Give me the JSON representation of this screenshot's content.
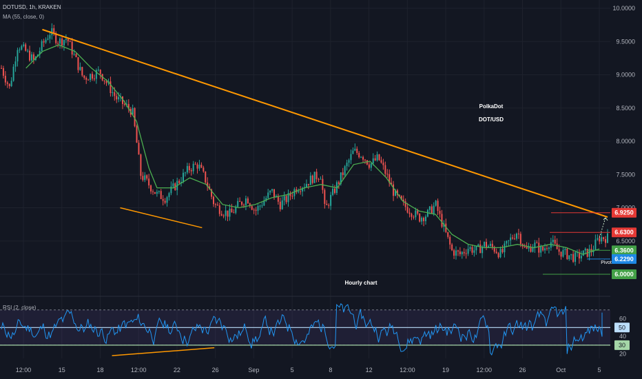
{
  "header": {
    "symbol_line": "DOTUSD, 1h, KRAKEN",
    "ma_line": "MA (55, close, 0)",
    "rsi_line": "RSI (2, close)"
  },
  "annotations": {
    "title1": "PolkaDot",
    "title2": "DOT/USD",
    "chart_note": "Hourly chart",
    "pivot": "Pivot"
  },
  "colors": {
    "background": "#131722",
    "candle_up": "#26a69a",
    "candle_down": "#ef5350",
    "ma": "#4caf50",
    "trendline": "#ff9800",
    "rsi": "#2196f3",
    "red_level": "#e53935",
    "green_level": "#43a047",
    "blue_level": "#1e88e5"
  },
  "chart_data": [
    {
      "type": "candlestick",
      "name": "price",
      "symbol": "DOTUSD",
      "interval": "1h",
      "exchange": "KRAKEN",
      "ylim": [
        5.6,
        10.0
      ],
      "ytick_labels": [
        "10.0000",
        "9.5000",
        "9.0000",
        "8.5000",
        "8.0000",
        "7.5000",
        "7.0000",
        "6.5000",
        "6.0000"
      ],
      "yticks": [
        10.0,
        9.5,
        9.0,
        8.5,
        8.0,
        7.5,
        7.0,
        6.5,
        6.0
      ],
      "x_tick_labels": [
        "12:00",
        "15",
        "18",
        "12:00",
        "22",
        "26",
        "Sep",
        "5",
        "8",
        "12",
        "12:00",
        "19",
        "12:00",
        "26",
        "Oct",
        "5"
      ],
      "close_path": [
        [
          0,
          9.1
        ],
        [
          2,
          8.8
        ],
        [
          4,
          9.45
        ],
        [
          6,
          9.35
        ],
        [
          8,
          9.2
        ],
        [
          10,
          9.45
        ],
        [
          12,
          9.65
        ],
        [
          14,
          9.5
        ],
        [
          16,
          9.55
        ],
        [
          18,
          9.25
        ],
        [
          20,
          8.95
        ],
        [
          22,
          9.0
        ],
        [
          24,
          9.05
        ],
        [
          26,
          8.85
        ],
        [
          28,
          8.65
        ],
        [
          30,
          8.55
        ],
        [
          32,
          8.45
        ],
        [
          33,
          8.0
        ],
        [
          34,
          7.5
        ],
        [
          36,
          7.35
        ],
        [
          38,
          7.2
        ],
        [
          40,
          7.15
        ],
        [
          42,
          7.3
        ],
        [
          44,
          7.45
        ],
        [
          46,
          7.6
        ],
        [
          48,
          7.65
        ],
        [
          50,
          7.4
        ],
        [
          52,
          7.05
        ],
        [
          54,
          6.95
        ],
        [
          56,
          6.9
        ],
        [
          58,
          7.05
        ],
        [
          60,
          7.15
        ],
        [
          62,
          6.95
        ],
        [
          64,
          7.1
        ],
        [
          66,
          7.25
        ],
        [
          68,
          7.05
        ],
        [
          70,
          7.15
        ],
        [
          72,
          7.3
        ],
        [
          74,
          7.35
        ],
        [
          76,
          7.45
        ],
        [
          78,
          7.5
        ],
        [
          79,
          6.95
        ],
        [
          80,
          7.1
        ],
        [
          82,
          7.35
        ],
        [
          84,
          7.6
        ],
        [
          86,
          7.85
        ],
        [
          88,
          7.8
        ],
        [
          90,
          7.65
        ],
        [
          92,
          7.75
        ],
        [
          94,
          7.5
        ],
        [
          96,
          7.2
        ],
        [
          98,
          7.05
        ],
        [
          100,
          6.95
        ],
        [
          102,
          6.85
        ],
        [
          104,
          6.9
        ],
        [
          106,
          7.05
        ],
        [
          108,
          6.7
        ],
        [
          110,
          6.35
        ],
        [
          112,
          6.3
        ],
        [
          114,
          6.4
        ],
        [
          116,
          6.35
        ],
        [
          118,
          6.45
        ],
        [
          120,
          6.4
        ],
        [
          122,
          6.3
        ],
        [
          124,
          6.5
        ],
        [
          126,
          6.65
        ],
        [
          128,
          6.35
        ],
        [
          130,
          6.45
        ],
        [
          132,
          6.35
        ],
        [
          134,
          6.5
        ],
        [
          136,
          6.35
        ],
        [
          138,
          6.3
        ],
        [
          140,
          6.25
        ],
        [
          142,
          6.3
        ],
        [
          144,
          6.35
        ],
        [
          146,
          6.55
        ]
      ],
      "ma55_path": [
        [
          6,
          9.1
        ],
        [
          10,
          9.35
        ],
        [
          14,
          9.45
        ],
        [
          18,
          9.35
        ],
        [
          22,
          9.1
        ],
        [
          26,
          8.9
        ],
        [
          30,
          8.6
        ],
        [
          33,
          8.3
        ],
        [
          36,
          7.6
        ],
        [
          38,
          7.3
        ],
        [
          42,
          7.3
        ],
        [
          46,
          7.45
        ],
        [
          50,
          7.35
        ],
        [
          54,
          7.05
        ],
        [
          58,
          7.0
        ],
        [
          62,
          7.05
        ],
        [
          66,
          7.15
        ],
        [
          70,
          7.2
        ],
        [
          74,
          7.3
        ],
        [
          78,
          7.35
        ],
        [
          82,
          7.3
        ],
        [
          86,
          7.65
        ],
        [
          90,
          7.7
        ],
        [
          94,
          7.45
        ],
        [
          98,
          7.1
        ],
        [
          102,
          6.95
        ],
        [
          106,
          6.9
        ],
        [
          110,
          6.6
        ],
        [
          114,
          6.45
        ],
        [
          118,
          6.4
        ],
        [
          122,
          6.4
        ],
        [
          126,
          6.45
        ],
        [
          130,
          6.4
        ],
        [
          134,
          6.45
        ],
        [
          138,
          6.4
        ],
        [
          142,
          6.3
        ],
        [
          146,
          6.38
        ]
      ],
      "trendlines": [
        {
          "from": [
            10,
            9.68
          ],
          "to": [
            148,
            6.86
          ]
        },
        {
          "from": [
            29,
            7.0
          ],
          "to": [
            49,
            6.7
          ]
        }
      ],
      "horizontal_levels": [
        {
          "value": 6.925,
          "label": "6.9250",
          "color": "#e53935"
        },
        {
          "value": 6.63,
          "label": "6.6300",
          "color": "#e53935"
        },
        {
          "value": 6.36,
          "label": "6.3600",
          "color": "#43a047"
        },
        {
          "value": 6.229,
          "label": "6.2290",
          "color": "#1e88e5"
        },
        {
          "value": 6.0,
          "label": "6.0000",
          "color": "#43a047"
        }
      ],
      "current_price": 6.36
    },
    {
      "type": "line",
      "name": "rsi",
      "title": "RSI (2, close)",
      "ylim": [
        15,
        80
      ],
      "yticks": [
        60,
        50,
        40,
        30,
        20
      ],
      "ytick_labels": [
        "60",
        "50",
        "40",
        "30",
        "20"
      ],
      "bands": [
        70,
        30
      ],
      "current": 50,
      "trendline": {
        "from": [
          27,
          18
        ],
        "to": [
          52,
          27
        ]
      }
    }
  ]
}
